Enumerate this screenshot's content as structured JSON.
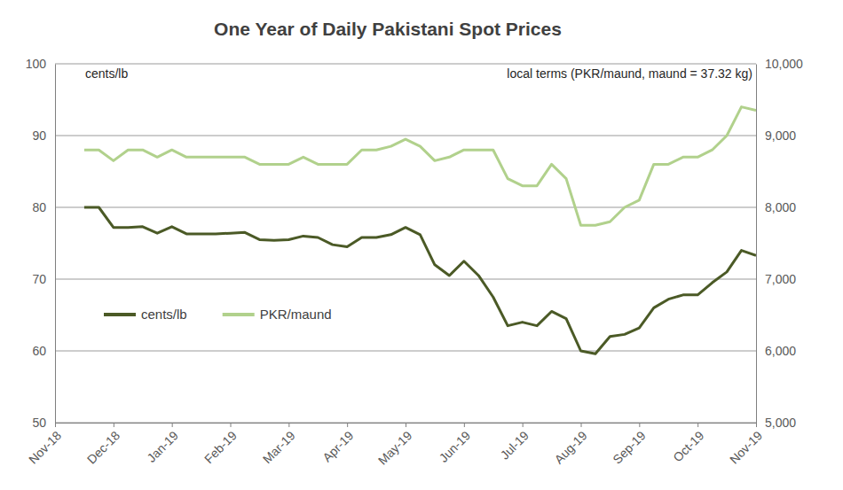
{
  "chart_data": {
    "type": "line",
    "title": "One Year of Daily Pakistani Spot Prices",
    "ylabel": "cents/lb",
    "y2label": "local terms (PKR/maund, maund = 37.32 kg)",
    "categories": [
      "Nov-18",
      null,
      null,
      null,
      "Dec-18",
      null,
      null,
      null,
      "Jan-19",
      null,
      null,
      null,
      "Feb-19",
      null,
      null,
      null,
      "Mar-19",
      null,
      null,
      null,
      "Apr-19",
      null,
      null,
      null,
      "May-19",
      null,
      null,
      null,
      "Jun-19",
      null,
      null,
      null,
      "Jul-19",
      null,
      null,
      null,
      "Aug-19",
      null,
      null,
      null,
      "Sep-19",
      null,
      null,
      null,
      "Oct-19",
      null,
      null,
      null,
      "Nov-19"
    ],
    "series": [
      {
        "name": "cents/lb",
        "color": "#4b5a26",
        "values": [
          null,
          null,
          80,
          80,
          77.2,
          77.2,
          77.3,
          76.4,
          77.3,
          76.3,
          76.3,
          76.3,
          76.4,
          76.5,
          75.5,
          75.4,
          75.5,
          76,
          75.8,
          74.8,
          74.5,
          75.8,
          75.8,
          76.2,
          77.2,
          76.2,
          72,
          70.5,
          72.5,
          70.5,
          67.5,
          63.5,
          64,
          63.5,
          65.5,
          64.5,
          60,
          59.6,
          62,
          62.3,
          63.2,
          66,
          67.2,
          67.8,
          67.8,
          69.5,
          71,
          74,
          73.3
        ]
      },
      {
        "name": "PKR/maund",
        "color": "#b1d18c",
        "axis": "y2",
        "values": [
          null,
          null,
          8800,
          8800,
          8650,
          8800,
          8800,
          8700,
          8800,
          8700,
          8700,
          8700,
          8700,
          8700,
          8600,
          8600,
          8600,
          8700,
          8600,
          8600,
          8600,
          8800,
          8800,
          8850,
          8950,
          8850,
          8650,
          8700,
          8800,
          8800,
          8800,
          8400,
          8300,
          8300,
          8600,
          8400,
          7750,
          7750,
          7800,
          8000,
          8100,
          8600,
          8600,
          8700,
          8700,
          8800,
          9000,
          9400,
          9350
        ]
      }
    ],
    "ylim": [
      50,
      100
    ],
    "yticks": [
      50,
      60,
      70,
      80,
      90,
      100
    ],
    "y2lim": [
      5000,
      10000
    ],
    "y2ticks": [
      {
        "value": 5000,
        "label": "5,000"
      },
      {
        "value": 6000,
        "label": "6,000"
      },
      {
        "value": 7000,
        "label": "7,000"
      },
      {
        "value": 8000,
        "label": "8,000"
      },
      {
        "value": 9000,
        "label": "9,000"
      },
      {
        "value": 10000,
        "label": "10,000"
      }
    ],
    "grid": true,
    "legend": "left"
  }
}
